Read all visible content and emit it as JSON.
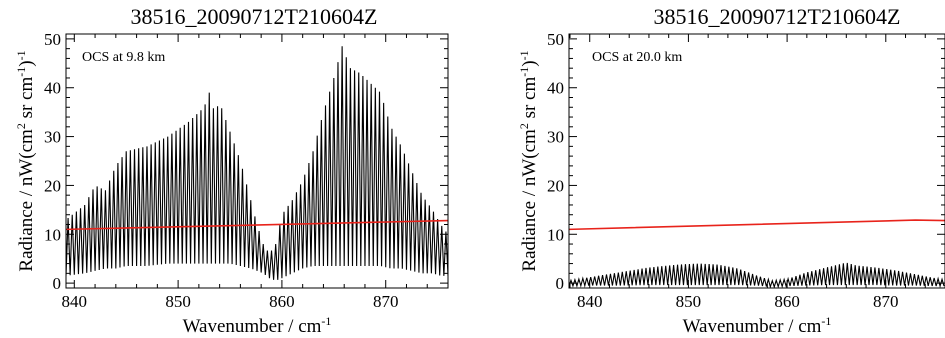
{
  "chart_data": [
    {
      "type": "line",
      "title": "38516_20090712T210604Z",
      "annotation": "OCS at 9.8 km",
      "xlabel": "Wavenumber / cm",
      "xlabel_sup": "-1",
      "ylabel": "Radiance / nW(cm",
      "ylabel_sup1": "2",
      "ylabel_mid": " sr cm",
      "ylabel_sup2": "-1",
      "ylabel_end": ")",
      "ylabel_sup3": "-1",
      "xlim": [
        839.2,
        876
      ],
      "ylim": [
        -1,
        51
      ],
      "xticks": [
        840,
        850,
        860,
        870
      ],
      "yticks": [
        0,
        10,
        20,
        30,
        40,
        50
      ],
      "grid": false,
      "series": [
        {
          "style": "oscillating spectrum (black)",
          "color": "#000000",
          "x_start": 839.2,
          "x_end": 876,
          "spacing": 0.4,
          "envelope_x": [
            839.2,
            841,
            842,
            843,
            844,
            845,
            847,
            849,
            851,
            852.5,
            853,
            853.5,
            854,
            855,
            856,
            857,
            857.6,
            858.2,
            858.8,
            859.4,
            860,
            861,
            862,
            863,
            864,
            865,
            865.8,
            866.6,
            867.5,
            868.5,
            869.5,
            870.5,
            871.5,
            872.5,
            873.5,
            874.5,
            875.3,
            876
          ],
          "envelope_max": [
            13,
            16,
            20,
            19,
            24,
            27,
            28,
            30,
            33,
            36,
            39,
            35,
            37,
            31,
            25,
            17,
            12,
            8,
            6,
            8,
            14,
            17,
            21,
            27,
            35,
            42,
            48.5,
            44,
            43,
            41,
            39,
            32,
            28,
            23,
            18,
            15,
            12,
            10
          ],
          "envelope_min": [
            1.5,
            2,
            2.5,
            3,
            3,
            3.5,
            3.5,
            4,
            4,
            4,
            4,
            4,
            4,
            4,
            3.5,
            3,
            2.5,
            2,
            1,
            0.5,
            1,
            2,
            3,
            3.5,
            3.5,
            3.5,
            3.5,
            3.5,
            3.5,
            3.5,
            3.5,
            3,
            3,
            2.5,
            2,
            2,
            1.5,
            1.5
          ]
        },
        {
          "style": "smooth baseline (red)",
          "color": "#e8231b",
          "x": [
            839.2,
            876
          ],
          "y": [
            11.0,
            12.8
          ]
        }
      ]
    },
    {
      "type": "line",
      "title": "38516_20090712T210604Z",
      "annotation": "OCS at 20.0 km",
      "xlabel": "Wavenumber / cm",
      "xlabel_sup": "-1",
      "ylabel": "Radiance / nW(cm",
      "ylabel_sup1": "2",
      "ylabel_mid": " sr cm",
      "ylabel_sup2": "-1",
      "ylabel_end": ")",
      "ylabel_sup3": "-1",
      "xlim": [
        837.9,
        876
      ],
      "ylim": [
        -1,
        51
      ],
      "xticks": [
        840,
        850,
        860,
        870
      ],
      "yticks": [
        0,
        10,
        20,
        30,
        40,
        50
      ],
      "grid": false,
      "series": [
        {
          "style": "oscillating spectrum (black)",
          "color": "#000000",
          "x_start": 837.9,
          "x_end": 876,
          "spacing": 0.4,
          "envelope_x": [
            837.9,
            840,
            843,
            846,
            849,
            851,
            853,
            855,
            857,
            858.5,
            860,
            862,
            864,
            866,
            867,
            869,
            871,
            873,
            875,
            876
          ],
          "envelope_max": [
            0.5,
            1.2,
            2.2,
            3.2,
            3.8,
            4.0,
            3.8,
            3.0,
            1.5,
            0.5,
            0.8,
            2.2,
            3.2,
            4.2,
            3.6,
            3.2,
            2.6,
            1.8,
            1.0,
            0.7
          ],
          "envelope_min": [
            -0.6,
            -0.5,
            -0.5,
            -0.4,
            -0.4,
            -0.4,
            -0.4,
            -0.4,
            -0.5,
            -0.8,
            -0.6,
            -0.5,
            -0.4,
            -0.4,
            -0.4,
            -0.4,
            -0.5,
            -0.5,
            -0.6,
            -0.6
          ]
        },
        {
          "style": "smooth baseline (red)",
          "color": "#e8231b",
          "x": [
            837.9,
            873,
            876
          ],
          "y": [
            11.0,
            12.9,
            12.8
          ]
        }
      ]
    }
  ]
}
